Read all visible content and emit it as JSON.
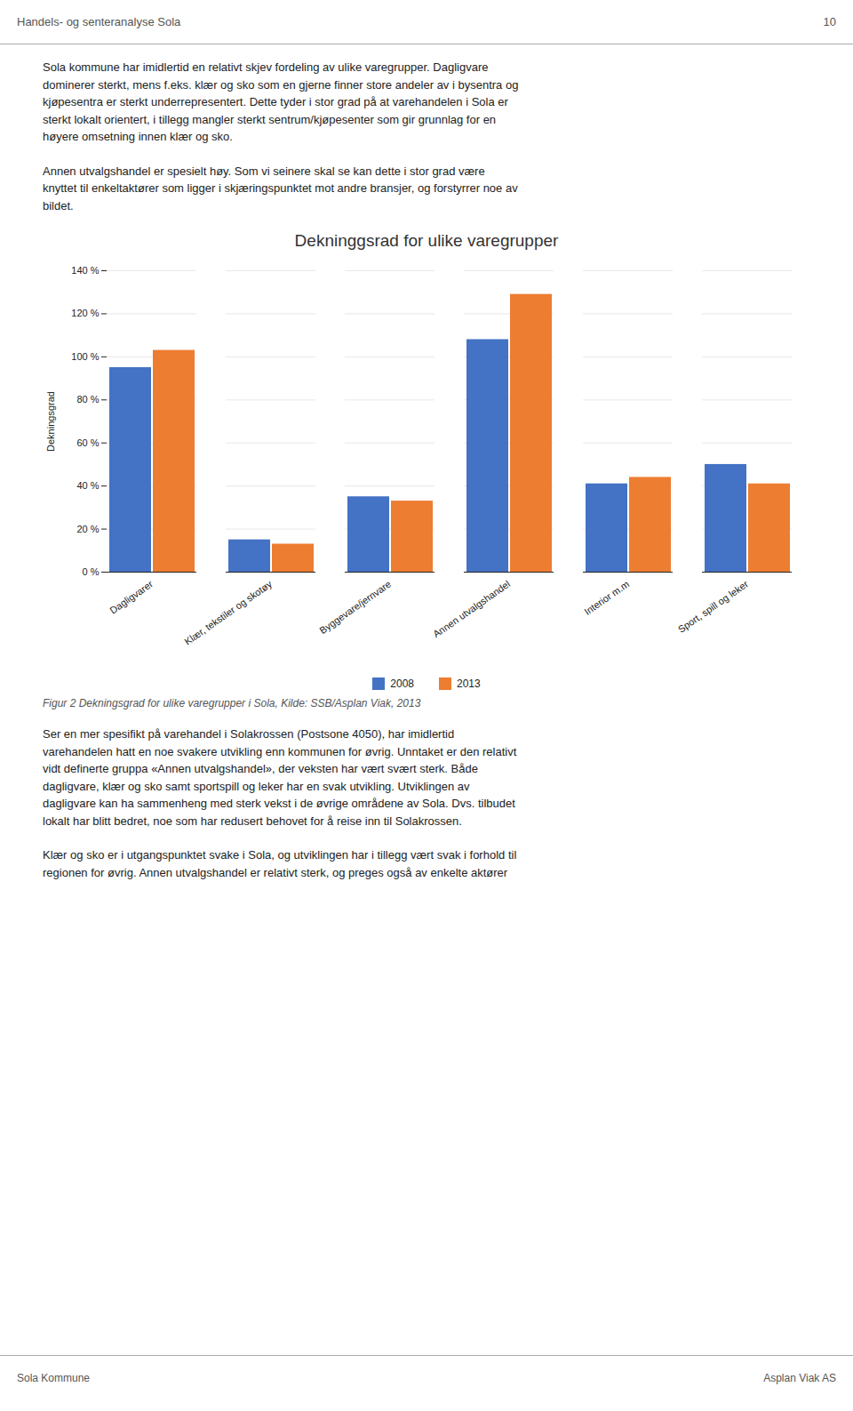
{
  "header_text": "Handels- og senteranalyse Sola",
  "page_number": "10",
  "body_texts": [
    "Sola kommune har imidlertid en relativt skjev fordeling av ulike varegrupper. Dagligvare\ndominerer sterkt, mens f.eks. klær og sko som en gjerne finner store andeler av i bysentra og\nkjøpesentra er sterkt underrepresentert. Dette tyder i stor grad på at varehandelen i Sola er\nsterkt lokalt orientert, i tillegg mangler sterkt sentrum/kjøpesenter som gir grunnlag for en\nhøyere omsetning innen klær og sko.",
    "Annen utvalgshandel er spesielt høy. Som vi seinere skal se kan dette i stor grad være\nknyttet til enkeltaktører som ligger i skjæringspunktet mot andre bransjer, og forstyrrer noe av\nbildet.",
    "Ser en mer spesifikt på varehandel i Solakrossen (Postsone 4050), har imidlertid\nvarehandelen hatt en noe svakere utvikling enn kommunen for øvrig. Unntaket er den relativt\nvidt definerte gruppa «Annen utvalgshandel», der veksten har vært svært sterk. Både\ndagligvare, klær og sko samt sportspill og leker har en svak utvikling. Utviklingen av\ndagligvare kan ha sammenheng med sterk vekst i de øvrige områdene av Sola. Dvs. tilbudet\nlokalt har blitt bedret, noe som har redusert behovet for å reise inn til Solakrossen.",
    "Klær og sko er i utgangspunktet svake i Sola, og utviklingen har i tillegg vært svak i forhold til\nregionen for øvrig. Annen utvalgshandel er relativt sterk, og preges også av enkelte aktører"
  ],
  "footer_left": "Sola Kommune",
  "footer_right": "Asplan Viak AS",
  "chart_data": {
    "type": "bar",
    "title": "Dekninggsrad for ulike varegrupper",
    "ylabel": "Dekningsgrad",
    "caption": "Figur 2 Dekningsgrad for ulike varegrupper i Sola, Kilde: SSB/Asplan Viak, 2013",
    "categories": [
      "Dagligvarer",
      "Klær, tekstiler og skotøy",
      "Byggevare/jernvare",
      "Annen utvalgshandel",
      "Interior m.m",
      "Sport, spill og leker"
    ],
    "series": [
      {
        "name": "2008",
        "color": "#4472c4",
        "values": [
          95,
          15,
          35,
          108,
          41,
          50
        ]
      },
      {
        "name": "2013",
        "color": "#ed7d31",
        "values": [
          103,
          13,
          33,
          129,
          44,
          41
        ]
      }
    ],
    "ylim": [
      0,
      140
    ],
    "yticks": [
      {
        "value": 0,
        "label": "0 %"
      },
      {
        "value": 20,
        "label": "20 %"
      },
      {
        "value": 40,
        "label": "40 %"
      },
      {
        "value": 60,
        "label": "60 %"
      },
      {
        "value": 80,
        "label": "80 %"
      },
      {
        "value": 100,
        "label": "100 %"
      },
      {
        "value": 120,
        "label": "120 %"
      },
      {
        "value": 140,
        "label": "140 %"
      }
    ],
    "grid": true,
    "legend": "bottom"
  }
}
